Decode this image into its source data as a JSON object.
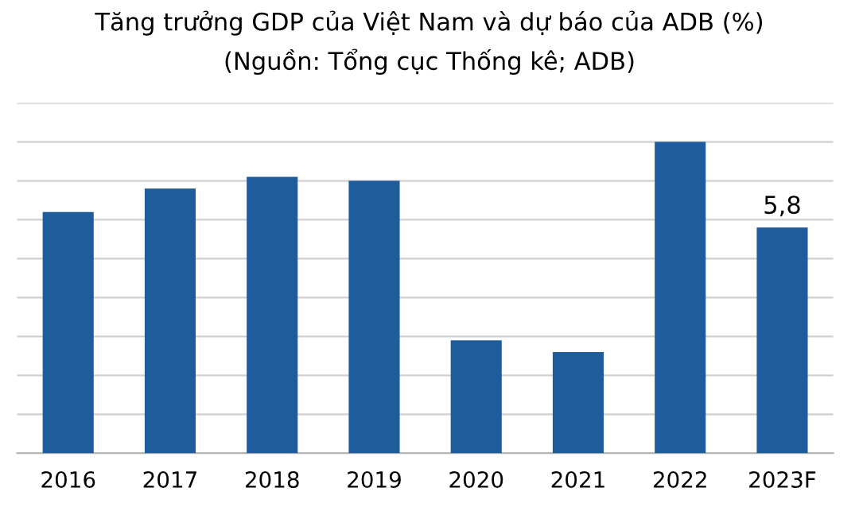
{
  "chart_data": {
    "type": "bar",
    "title": "Tăng trưởng GDP của Việt Nam và dự báo của ADB (%)",
    "subtitle": "(Nguồn: Tổng cục Thống kê; ADB)",
    "categories": [
      "2016",
      "2017",
      "2018",
      "2019",
      "2020",
      "2021",
      "2022",
      "2023F"
    ],
    "values": [
      6.2,
      6.8,
      7.1,
      7.0,
      2.9,
      2.6,
      8.0,
      5.8
    ],
    "value_labels": [
      null,
      null,
      null,
      null,
      null,
      null,
      null,
      "5,8"
    ],
    "ylim": [
      0,
      9
    ],
    "yticks": [
      {
        "value": 0,
        "label": null
      },
      {
        "value": 1,
        "label": null
      },
      {
        "value": 2,
        "label": null
      },
      {
        "value": 3,
        "label": null
      },
      {
        "value": 4,
        "label": null
      },
      {
        "value": 5,
        "label": null
      },
      {
        "value": 6,
        "label": null
      },
      {
        "value": 7,
        "label": null
      },
      {
        "value": 8,
        "label": null
      },
      {
        "value": 9,
        "label": null
      }
    ],
    "tick_labels": "x",
    "color": "#1f5c9c",
    "grid": "y"
  }
}
